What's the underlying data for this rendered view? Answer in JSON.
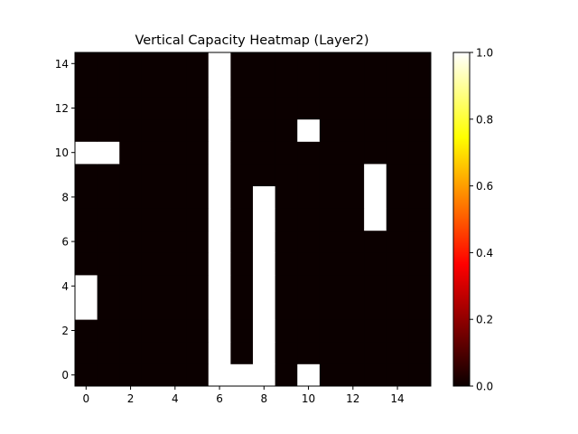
{
  "chart_data": {
    "type": "heatmap",
    "title": "Vertical Capacity Heatmap (Layer2)",
    "xlabel": "",
    "ylabel": "",
    "x_range": [
      -0.5,
      15.5
    ],
    "y_range": [
      -0.5,
      14.5
    ],
    "x_ticks": [
      0,
      2,
      4,
      6,
      8,
      10,
      12,
      14
    ],
    "y_ticks": [
      0,
      2,
      4,
      6,
      8,
      10,
      12,
      14
    ],
    "colormap": "hot",
    "colorbar": {
      "range": [
        0.0,
        1.0
      ],
      "ticks": [
        "0.0",
        "0.2",
        "0.4",
        "0.6",
        "0.8",
        "1.0"
      ]
    },
    "grid": false,
    "rows": 15,
    "cols": 16,
    "default_value": 0,
    "cells_with_value_1": [
      [
        6,
        0
      ],
      [
        7,
        0
      ],
      [
        8,
        0
      ],
      [
        10,
        0
      ],
      [
        6,
        1
      ],
      [
        8,
        1
      ],
      [
        6,
        2
      ],
      [
        8,
        2
      ],
      [
        0,
        3
      ],
      [
        6,
        3
      ],
      [
        8,
        3
      ],
      [
        0,
        4
      ],
      [
        6,
        4
      ],
      [
        8,
        4
      ],
      [
        6,
        5
      ],
      [
        8,
        5
      ],
      [
        6,
        6
      ],
      [
        8,
        6
      ],
      [
        6,
        7
      ],
      [
        8,
        7
      ],
      [
        13,
        7
      ],
      [
        6,
        8
      ],
      [
        8,
        8
      ],
      [
        13,
        8
      ],
      [
        6,
        9
      ],
      [
        13,
        9
      ],
      [
        0,
        10
      ],
      [
        1,
        10
      ],
      [
        6,
        10
      ],
      [
        6,
        11
      ],
      [
        10,
        11
      ],
      [
        6,
        12
      ],
      [
        6,
        13
      ],
      [
        6,
        14
      ]
    ]
  }
}
